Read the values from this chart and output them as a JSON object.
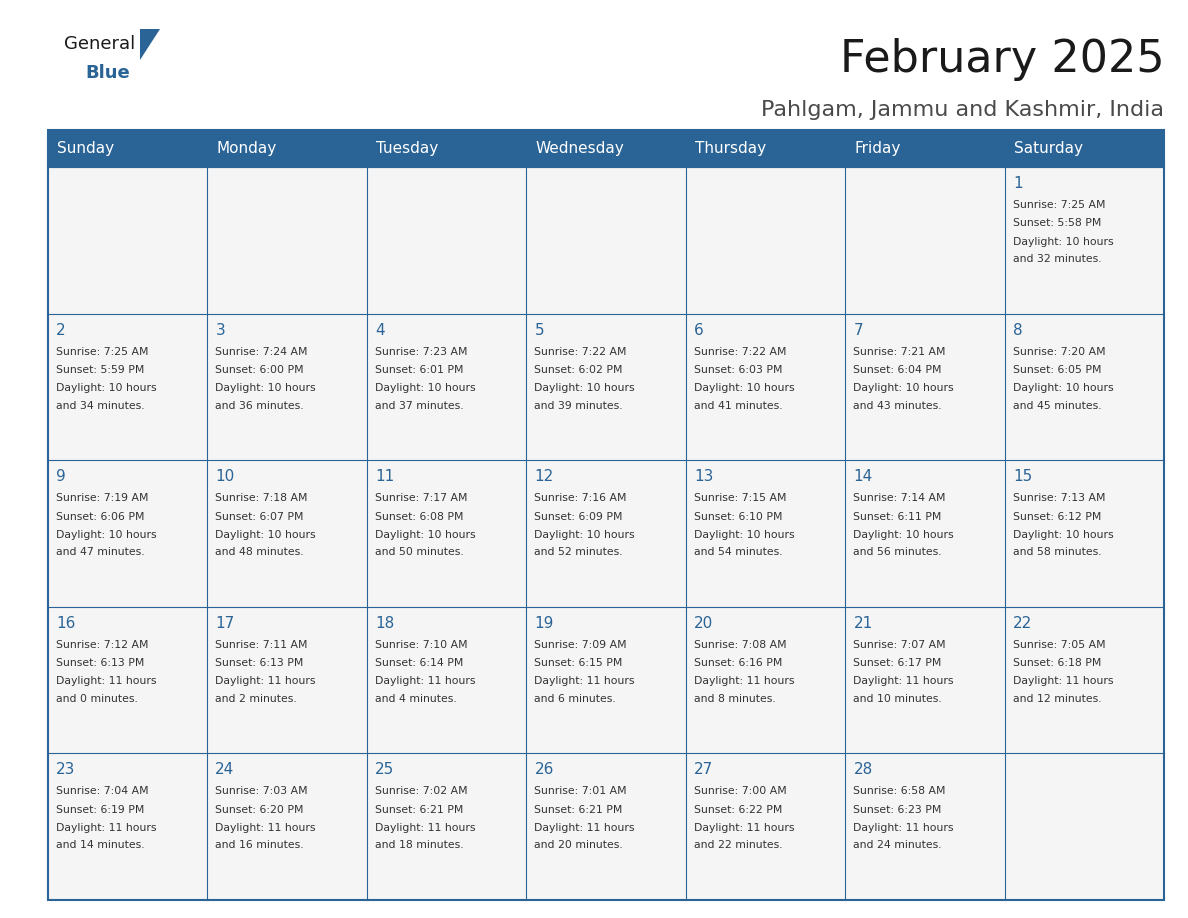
{
  "title": "February 2025",
  "subtitle": "Pahlgam, Jammu and Kashmir, India",
  "header_bg": "#2a6496",
  "header_text": "#ffffff",
  "day_names": [
    "Sunday",
    "Monday",
    "Tuesday",
    "Wednesday",
    "Thursday",
    "Friday",
    "Saturday"
  ],
  "calendar_data": [
    [
      null,
      null,
      null,
      null,
      null,
      null,
      {
        "day": 1,
        "sunrise": "7:25 AM",
        "sunset": "5:58 PM",
        "daylight": "10 hours and 32 minutes."
      }
    ],
    [
      {
        "day": 2,
        "sunrise": "7:25 AM",
        "sunset": "5:59 PM",
        "daylight": "10 hours and 34 minutes."
      },
      {
        "day": 3,
        "sunrise": "7:24 AM",
        "sunset": "6:00 PM",
        "daylight": "10 hours and 36 minutes."
      },
      {
        "day": 4,
        "sunrise": "7:23 AM",
        "sunset": "6:01 PM",
        "daylight": "10 hours and 37 minutes."
      },
      {
        "day": 5,
        "sunrise": "7:22 AM",
        "sunset": "6:02 PM",
        "daylight": "10 hours and 39 minutes."
      },
      {
        "day": 6,
        "sunrise": "7:22 AM",
        "sunset": "6:03 PM",
        "daylight": "10 hours and 41 minutes."
      },
      {
        "day": 7,
        "sunrise": "7:21 AM",
        "sunset": "6:04 PM",
        "daylight": "10 hours and 43 minutes."
      },
      {
        "day": 8,
        "sunrise": "7:20 AM",
        "sunset": "6:05 PM",
        "daylight": "10 hours and 45 minutes."
      }
    ],
    [
      {
        "day": 9,
        "sunrise": "7:19 AM",
        "sunset": "6:06 PM",
        "daylight": "10 hours and 47 minutes."
      },
      {
        "day": 10,
        "sunrise": "7:18 AM",
        "sunset": "6:07 PM",
        "daylight": "10 hours and 48 minutes."
      },
      {
        "day": 11,
        "sunrise": "7:17 AM",
        "sunset": "6:08 PM",
        "daylight": "10 hours and 50 minutes."
      },
      {
        "day": 12,
        "sunrise": "7:16 AM",
        "sunset": "6:09 PM",
        "daylight": "10 hours and 52 minutes."
      },
      {
        "day": 13,
        "sunrise": "7:15 AM",
        "sunset": "6:10 PM",
        "daylight": "10 hours and 54 minutes."
      },
      {
        "day": 14,
        "sunrise": "7:14 AM",
        "sunset": "6:11 PM",
        "daylight": "10 hours and 56 minutes."
      },
      {
        "day": 15,
        "sunrise": "7:13 AM",
        "sunset": "6:12 PM",
        "daylight": "10 hours and 58 minutes."
      }
    ],
    [
      {
        "day": 16,
        "sunrise": "7:12 AM",
        "sunset": "6:13 PM",
        "daylight": "11 hours and 0 minutes."
      },
      {
        "day": 17,
        "sunrise": "7:11 AM",
        "sunset": "6:13 PM",
        "daylight": "11 hours and 2 minutes."
      },
      {
        "day": 18,
        "sunrise": "7:10 AM",
        "sunset": "6:14 PM",
        "daylight": "11 hours and 4 minutes."
      },
      {
        "day": 19,
        "sunrise": "7:09 AM",
        "sunset": "6:15 PM",
        "daylight": "11 hours and 6 minutes."
      },
      {
        "day": 20,
        "sunrise": "7:08 AM",
        "sunset": "6:16 PM",
        "daylight": "11 hours and 8 minutes."
      },
      {
        "day": 21,
        "sunrise": "7:07 AM",
        "sunset": "6:17 PM",
        "daylight": "11 hours and 10 minutes."
      },
      {
        "day": 22,
        "sunrise": "7:05 AM",
        "sunset": "6:18 PM",
        "daylight": "11 hours and 12 minutes."
      }
    ],
    [
      {
        "day": 23,
        "sunrise": "7:04 AM",
        "sunset": "6:19 PM",
        "daylight": "11 hours and 14 minutes."
      },
      {
        "day": 24,
        "sunrise": "7:03 AM",
        "sunset": "6:20 PM",
        "daylight": "11 hours and 16 minutes."
      },
      {
        "day": 25,
        "sunrise": "7:02 AM",
        "sunset": "6:21 PM",
        "daylight": "11 hours and 18 minutes."
      },
      {
        "day": 26,
        "sunrise": "7:01 AM",
        "sunset": "6:21 PM",
        "daylight": "11 hours and 20 minutes."
      },
      {
        "day": 27,
        "sunrise": "7:00 AM",
        "sunset": "6:22 PM",
        "daylight": "11 hours and 22 minutes."
      },
      {
        "day": 28,
        "sunrise": "6:58 AM",
        "sunset": "6:23 PM",
        "daylight": "11 hours and 24 minutes."
      },
      null
    ]
  ],
  "logo_text_general": "General",
  "logo_text_blue": "Blue",
  "logo_color_general": "#1a1a1a",
  "logo_color_blue": "#2a6496",
  "title_color": "#1a1a1a",
  "subtitle_color": "#4a4a4a",
  "day_num_color": "#2a6496",
  "cell_text_color": "#333333",
  "border_color": "#2a6496",
  "cell_border_color": "#cccccc",
  "cell_bg": "#f5f5f5"
}
